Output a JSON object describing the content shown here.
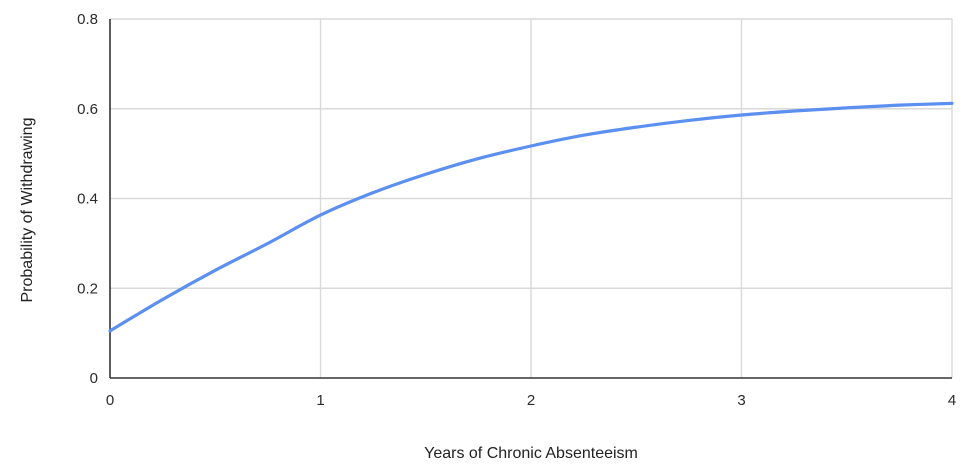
{
  "chart_data": {
    "type": "line",
    "title": "",
    "xlabel": "Years of Chronic Absenteeism",
    "ylabel": "Probability of Withdrawing",
    "xlim": [
      0,
      4
    ],
    "ylim": [
      0,
      0.8
    ],
    "xticks": [
      0,
      1,
      2,
      3,
      4
    ],
    "xtick_labels": [
      "0",
      "1",
      "2",
      "3",
      "4"
    ],
    "yticks": [
      0,
      0.2,
      0.4,
      0.6,
      0.8
    ],
    "ytick_labels": [
      "0",
      "0.2",
      "0.4",
      "0.6",
      "0.8"
    ],
    "grid": true,
    "legend": "none",
    "series": [
      {
        "color": "#5b8ff0",
        "x": [
          0,
          0.25,
          0.5,
          0.75,
          1,
          1.25,
          1.5,
          1.75,
          2,
          2.25,
          2.5,
          2.75,
          3,
          3.25,
          3.5,
          3.75,
          4
        ],
        "y": [
          0.105,
          0.175,
          0.24,
          0.3,
          0.363,
          0.413,
          0.454,
          0.489,
          0.517,
          0.541,
          0.559,
          0.574,
          0.586,
          0.595,
          0.602,
          0.608,
          0.612
        ]
      }
    ]
  },
  "colors": {
    "grid": "#d9d9d9",
    "axis": "#333333",
    "line": "#5b8ff0"
  }
}
